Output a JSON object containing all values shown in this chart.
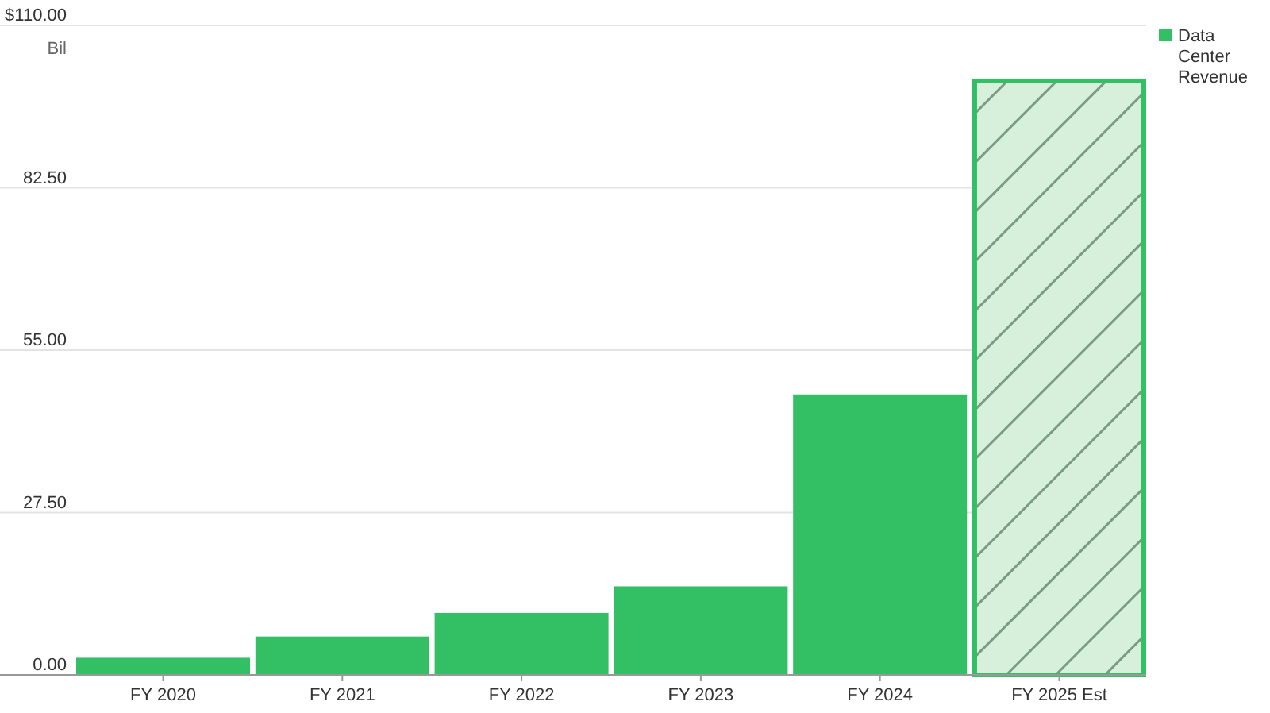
{
  "chart_data": {
    "type": "bar",
    "ylabel": "Bil",
    "categories": [
      "FY 2020",
      "FY 2021",
      "FY 2022",
      "FY 2023",
      "FY 2024",
      "FY 2025 Est"
    ],
    "series": [
      {
        "name": "Data Center Revenue",
        "color": "#33c065",
        "values": [
          2.9,
          6.5,
          10.5,
          15.0,
          47.5,
          101.0
        ]
      }
    ],
    "colors": [
      "#33c065",
      "#33c065",
      "#33c065",
      "#33c065",
      "#33c065",
      "#d6f0dc"
    ],
    "ylim": [
      0,
      110
    ],
    "yticks": [
      {
        "value": 0,
        "label": "0.00"
      },
      {
        "value": 27.5,
        "label": "27.50"
      },
      {
        "value": 55,
        "label": "55.00"
      },
      {
        "value": 82.5,
        "label": "82.50"
      },
      {
        "value": 110,
        "label": "$110.00"
      }
    ],
    "grid": "y",
    "legend": "top right"
  }
}
